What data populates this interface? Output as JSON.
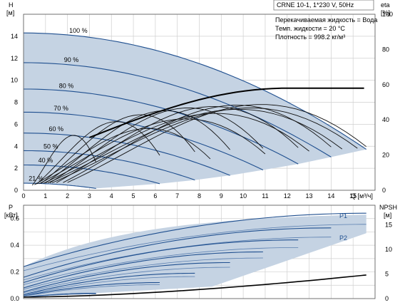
{
  "chart_data": {
    "type": "line",
    "title_box": "CRNE 10-1, 1*230 V, 50Hz",
    "info_lines": [
      "Перекачиваемая жидкость = Вода",
      "Темп. жидкости = 20 °C",
      "Плотность = 998.2 кг/м³"
    ],
    "top_chart": {
      "y_label_lines": [
        "H",
        "[м]"
      ],
      "y2_label_lines": [
        "eta",
        "[%]"
      ],
      "x_label": "Q [м³/ч]",
      "xlim": [
        0,
        16
      ],
      "ylim": [
        0,
        16
      ],
      "y2lim": [
        0,
        100
      ],
      "x_ticks": [
        "0",
        "1",
        "2",
        "3",
        "4",
        "5",
        "6",
        "7",
        "8",
        "9",
        "10",
        "11",
        "12",
        "13",
        "14",
        "15"
      ],
      "y_ticks": [
        "0",
        "2",
        "4",
        "6",
        "8",
        "10",
        "12",
        "14"
      ],
      "y2_ticks": [
        "0",
        "20",
        "40",
        "60",
        "80",
        "100"
      ],
      "grid": true,
      "speed_curves": [
        {
          "label": "100 %",
          "h0": 14.3,
          "qmax": 15.6
        },
        {
          "label": "90 %",
          "h0": 11.6,
          "qmax": 14.0
        },
        {
          "label": "80 %",
          "h0": 9.2,
          "qmax": 12.5
        },
        {
          "label": "70 %",
          "h0": 7.1,
          "qmax": 10.9
        },
        {
          "label": "60 %",
          "h0": 5.2,
          "qmax": 9.4
        },
        {
          "label": "50 %",
          "h0": 3.6,
          "qmax": 7.8
        },
        {
          "label": "40 %",
          "h0": 2.3,
          "qmax": 6.2
        },
        {
          "label": "21 %",
          "h0": 0.64,
          "qmax": 3.3
        }
      ]
    },
    "bottom_chart": {
      "y_label_lines": [
        "P",
        "[кВт]"
      ],
      "y2_label_lines": [
        "NPSH",
        "[м]"
      ],
      "ylim": [
        0,
        0.7
      ],
      "y2lim": [
        0,
        19
      ],
      "y_ticks": [
        "0.0",
        "0.2",
        "0.4",
        "0.6"
      ],
      "y2_ticks": [
        "0",
        "5",
        "10",
        "15"
      ],
      "series_labels": [
        "P1",
        "P2"
      ]
    }
  }
}
